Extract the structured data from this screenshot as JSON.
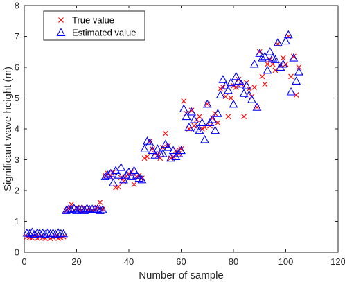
{
  "chart_data": {
    "type": "scatter",
    "xlabel": "Number of sample",
    "ylabel": "Significant wave height (m)",
    "xlim": [
      0,
      120
    ],
    "ylim": [
      0,
      8
    ],
    "xticks": [
      0,
      20,
      40,
      60,
      80,
      100,
      120
    ],
    "yticks": [
      0,
      1,
      2,
      3,
      4,
      5,
      6,
      7,
      8
    ],
    "grid": false,
    "legend_position": "top-left",
    "series": [
      {
        "name": "True value",
        "marker": "x",
        "color": "#ff0000",
        "x": [
          1,
          2,
          3,
          4,
          5,
          6,
          7,
          8,
          9,
          10,
          11,
          12,
          13,
          14,
          15,
          16,
          17,
          18,
          19,
          20,
          21,
          22,
          23,
          24,
          25,
          26,
          27,
          28,
          29,
          30,
          31,
          32,
          33,
          34,
          35,
          36,
          37,
          38,
          39,
          40,
          41,
          42,
          43,
          44,
          45,
          46,
          47,
          48,
          49,
          50,
          51,
          52,
          53,
          54,
          55,
          56,
          57,
          58,
          59,
          60,
          61,
          62,
          63,
          64,
          65,
          66,
          67,
          68,
          69,
          70,
          71,
          72,
          73,
          74,
          75,
          76,
          77,
          78,
          79,
          80,
          81,
          82,
          83,
          84,
          85,
          86,
          87,
          88,
          89,
          90,
          91,
          92,
          93,
          94,
          95,
          96,
          97,
          98,
          99,
          100,
          101,
          102,
          103,
          104,
          105
        ],
        "y": [
          0.5,
          0.48,
          0.46,
          0.52,
          0.45,
          0.5,
          0.47,
          0.45,
          0.5,
          0.44,
          0.48,
          0.52,
          0.45,
          0.47,
          0.5,
          1.35,
          1.42,
          1.55,
          1.38,
          1.45,
          1.4,
          1.35,
          1.45,
          1.38,
          1.42,
          1.35,
          1.4,
          1.45,
          1.62,
          1.4,
          2.48,
          2.55,
          2.45,
          2.6,
          2.1,
          2.12,
          2.42,
          2.3,
          2.45,
          2.55,
          2.6,
          2.2,
          2.45,
          2.5,
          2.4,
          3.05,
          3.1,
          3.6,
          3.35,
          3.2,
          3.15,
          3.05,
          3.4,
          3.85,
          3.45,
          3.05,
          3.1,
          3.3,
          3.2,
          3.35,
          4.9,
          4.5,
          4.0,
          4.6,
          4.1,
          4.3,
          4.4,
          4.0,
          4.05,
          4.8,
          4.1,
          4.35,
          4.5,
          4.2,
          5.3,
          5.35,
          5.05,
          4.4,
          5.0,
          5.4,
          5.35,
          5.6,
          5.45,
          4.4,
          5.5,
          5.3,
          5.05,
          5.35,
          4.7,
          6.5,
          5.7,
          5.45,
          6.1,
          6.25,
          6.1,
          5.9,
          6.75,
          6.05,
          6.3,
          6.1,
          7.0,
          5.7,
          6.35,
          5.1,
          6.0
        ],
        "values_approx": true
      },
      {
        "name": "Estimated value",
        "marker": "triangle",
        "color": "#0000ff",
        "x": [
          1,
          2,
          3,
          4,
          5,
          6,
          7,
          8,
          9,
          10,
          11,
          12,
          13,
          14,
          15,
          16,
          17,
          18,
          19,
          20,
          21,
          22,
          23,
          24,
          25,
          26,
          27,
          28,
          29,
          30,
          31,
          32,
          33,
          34,
          35,
          36,
          37,
          38,
          39,
          40,
          41,
          42,
          43,
          44,
          45,
          46,
          47,
          48,
          49,
          50,
          51,
          52,
          53,
          54,
          55,
          56,
          57,
          58,
          59,
          60,
          61,
          62,
          63,
          64,
          65,
          66,
          67,
          68,
          69,
          70,
          71,
          72,
          73,
          74,
          75,
          76,
          77,
          78,
          79,
          80,
          81,
          82,
          83,
          84,
          85,
          86,
          87,
          88,
          89,
          90,
          91,
          92,
          93,
          94,
          95,
          96,
          97,
          98,
          99,
          100,
          101,
          102,
          103,
          104,
          105
        ],
        "y": [
          0.62,
          0.6,
          0.65,
          0.58,
          0.63,
          0.6,
          0.62,
          0.58,
          0.63,
          0.6,
          0.62,
          0.58,
          0.63,
          0.6,
          0.6,
          1.35,
          1.4,
          1.38,
          1.42,
          1.35,
          1.38,
          1.4,
          1.35,
          1.42,
          1.38,
          1.4,
          1.38,
          1.4,
          1.35,
          1.38,
          2.45,
          2.5,
          2.55,
          2.25,
          2.65,
          2.5,
          2.75,
          2.35,
          2.5,
          2.6,
          2.45,
          2.65,
          2.5,
          2.4,
          2.35,
          3.35,
          3.6,
          3.55,
          3.3,
          3.15,
          3.35,
          3.2,
          3.2,
          3.5,
          3.4,
          3.05,
          3.3,
          3.1,
          3.2,
          3.3,
          4.65,
          4.4,
          4.05,
          4.55,
          4.3,
          4.0,
          3.95,
          4.2,
          3.65,
          4.8,
          4.2,
          4.3,
          3.95,
          4.5,
          5.1,
          5.6,
          5.4,
          5.25,
          5.5,
          4.8,
          5.7,
          5.55,
          5.45,
          5.15,
          5.4,
          5.1,
          4.95,
          6.1,
          4.7,
          6.45,
          6.3,
          6.35,
          5.9,
          6.5,
          6.3,
          6.25,
          6.8,
          6.0,
          6.1,
          6.85,
          7.05,
          5.2,
          6.3,
          5.55,
          5.85
        ],
        "values_approx": true
      }
    ]
  }
}
